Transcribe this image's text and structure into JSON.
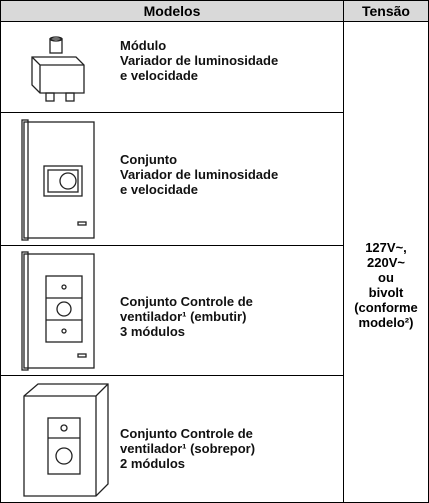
{
  "table": {
    "headers": [
      "Modelos",
      "Tensão"
    ],
    "rows": [
      {
        "lines": [
          "Módulo",
          "Variador de luminosidade",
          "e velocidade"
        ]
      },
      {
        "lines": [
          "Conjunto",
          "Variador de luminosidade",
          "e velocidade"
        ]
      },
      {
        "lines": [
          "Conjunto Controle de",
          "ventilador¹ (embutir)",
          "3 módulos"
        ]
      },
      {
        "lines": [
          "Conjunto Controle de",
          "ventilador¹ (sobrepor)",
          "2 módulos"
        ]
      }
    ],
    "voltage_lines": [
      "127V~,",
      "220V~",
      "ou",
      "bivolt",
      "(conforme",
      "modelo²)"
    ]
  }
}
